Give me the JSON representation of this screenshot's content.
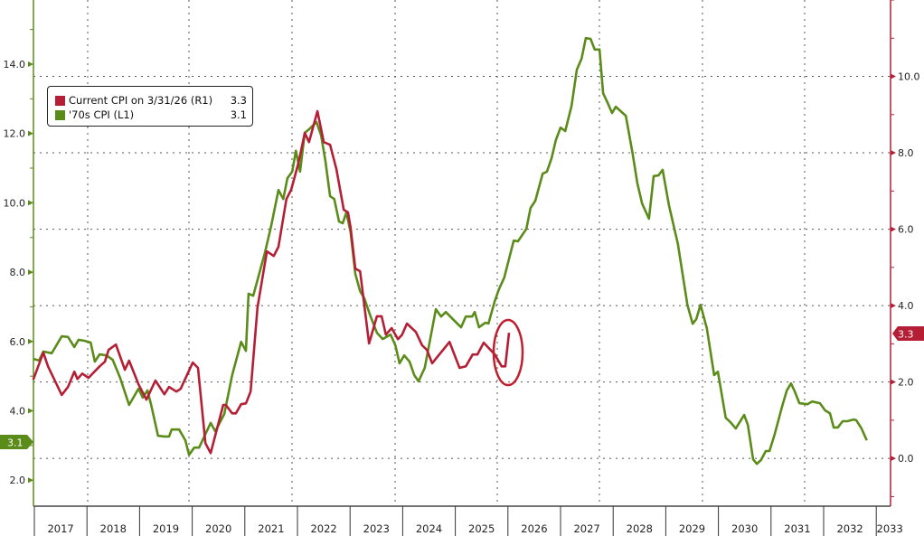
{
  "chart_data": {
    "type": "line",
    "title": "",
    "xlabel": "",
    "x_tick_labels": [
      "2017",
      "2018",
      "2019",
      "2020",
      "2021",
      "2022",
      "2023",
      "2024",
      "2025",
      "2026",
      "2027",
      "2028",
      "2029",
      "2030",
      "2031",
      "2032",
      "2033"
    ],
    "xlim": [
      2017,
      2033.27
    ],
    "y_left": {
      "ticks": [
        "2.0",
        "4.0",
        "6.0",
        "8.0",
        "10.0",
        "12.0",
        "14.0"
      ],
      "ylim": [
        1.25,
        15.85
      ]
    },
    "y_right": {
      "ticks": [
        "0.0",
        "2.0",
        "4.0",
        "6.0",
        "8.0",
        "10.0"
      ],
      "ylim": [
        -1.25,
        12.0
      ]
    },
    "grid": true,
    "legend_placement": "top-left",
    "colors": {
      "current": "#b51f36",
      "seventies": "#5b8c1a"
    },
    "series": [
      {
        "name": "Current CPI on 3/31/26 (R1)",
        "axis": "right",
        "last_value": "3.3",
        "points": [
          [
            2016.98,
            2.06
          ],
          [
            2017.17,
            2.77
          ],
          [
            2017.26,
            2.41
          ],
          [
            2017.52,
            1.66
          ],
          [
            2017.64,
            1.87
          ],
          [
            2017.76,
            2.27
          ],
          [
            2017.82,
            2.08
          ],
          [
            2017.91,
            2.22
          ],
          [
            2018.03,
            2.11
          ],
          [
            2018.24,
            2.41
          ],
          [
            2018.34,
            2.53
          ],
          [
            2018.41,
            2.84
          ],
          [
            2018.55,
            2.98
          ],
          [
            2018.72,
            2.32
          ],
          [
            2018.8,
            2.56
          ],
          [
            2018.98,
            1.94
          ],
          [
            2019.13,
            1.54
          ],
          [
            2019.3,
            2.04
          ],
          [
            2019.47,
            1.68
          ],
          [
            2019.56,
            1.87
          ],
          [
            2019.7,
            1.75
          ],
          [
            2019.78,
            1.82
          ],
          [
            2020.01,
            2.51
          ],
          [
            2020.11,
            2.37
          ],
          [
            2020.25,
            0.4
          ],
          [
            2020.35,
            0.14
          ],
          [
            2020.59,
            1.4
          ],
          [
            2020.64,
            1.4
          ],
          [
            2020.76,
            1.18
          ],
          [
            2020.83,
            1.18
          ],
          [
            2020.93,
            1.42
          ],
          [
            2021.02,
            1.44
          ],
          [
            2021.11,
            1.75
          ],
          [
            2021.24,
            3.95
          ],
          [
            2021.42,
            5.42
          ],
          [
            2021.55,
            5.3
          ],
          [
            2021.64,
            5.54
          ],
          [
            2021.79,
            6.79
          ],
          [
            2021.88,
            7.03
          ],
          [
            2022.02,
            7.74
          ],
          [
            2022.14,
            8.52
          ],
          [
            2022.22,
            8.28
          ],
          [
            2022.38,
            9.09
          ],
          [
            2022.5,
            8.28
          ],
          [
            2022.62,
            8.21
          ],
          [
            2022.74,
            7.57
          ],
          [
            2022.88,
            6.51
          ],
          [
            2022.96,
            6.44
          ],
          [
            2023.01,
            6.04
          ],
          [
            2023.1,
            4.97
          ],
          [
            2023.19,
            4.9
          ],
          [
            2023.36,
            3.01
          ],
          [
            2023.51,
            3.72
          ],
          [
            2023.6,
            3.72
          ],
          [
            2023.68,
            3.24
          ],
          [
            2023.79,
            3.41
          ],
          [
            2023.91,
            3.12
          ],
          [
            2023.99,
            3.24
          ],
          [
            2024.08,
            3.53
          ],
          [
            2024.25,
            3.31
          ],
          [
            2024.37,
            2.96
          ],
          [
            2024.46,
            2.84
          ],
          [
            2024.56,
            2.49
          ],
          [
            2024.89,
            3.05
          ],
          [
            2025.08,
            2.37
          ],
          [
            2025.2,
            2.41
          ],
          [
            2025.33,
            2.72
          ],
          [
            2025.42,
            2.72
          ],
          [
            2025.54,
            3.03
          ],
          [
            2025.75,
            2.72
          ],
          [
            2025.88,
            2.41
          ],
          [
            2025.95,
            2.41
          ],
          [
            2026.02,
            3.29
          ]
        ]
      },
      {
        "name": "'70s CPI (L1)",
        "axis": "left",
        "last_value": "3.1",
        "points": [
          [
            2016.98,
            5.5
          ],
          [
            2017.09,
            5.45
          ],
          [
            2017.17,
            5.71
          ],
          [
            2017.33,
            5.66
          ],
          [
            2017.52,
            6.15
          ],
          [
            2017.64,
            6.13
          ],
          [
            2017.76,
            5.84
          ],
          [
            2017.84,
            6.05
          ],
          [
            2017.95,
            6.02
          ],
          [
            2018.07,
            5.97
          ],
          [
            2018.15,
            5.42
          ],
          [
            2018.24,
            5.63
          ],
          [
            2018.37,
            5.6
          ],
          [
            2018.49,
            5.47
          ],
          [
            2018.63,
            4.95
          ],
          [
            2018.8,
            4.17
          ],
          [
            2018.98,
            4.64
          ],
          [
            2019.06,
            4.38
          ],
          [
            2019.15,
            4.59
          ],
          [
            2019.22,
            4.17
          ],
          [
            2019.35,
            3.28
          ],
          [
            2019.47,
            3.26
          ],
          [
            2019.56,
            3.26
          ],
          [
            2019.61,
            3.46
          ],
          [
            2019.75,
            3.46
          ],
          [
            2019.87,
            3.15
          ],
          [
            2019.94,
            2.73
          ],
          [
            2020.04,
            2.94
          ],
          [
            2020.13,
            2.94
          ],
          [
            2020.35,
            3.65
          ],
          [
            2020.44,
            3.41
          ],
          [
            2020.61,
            3.91
          ],
          [
            2020.76,
            5.03
          ],
          [
            2020.93,
            5.99
          ],
          [
            2021.02,
            5.73
          ],
          [
            2021.07,
            7.38
          ],
          [
            2021.16,
            7.32
          ],
          [
            2021.38,
            8.55
          ],
          [
            2021.5,
            9.33
          ],
          [
            2021.64,
            10.37
          ],
          [
            2021.73,
            10.11
          ],
          [
            2021.81,
            10.71
          ],
          [
            2021.9,
            10.9
          ],
          [
            2021.97,
            11.5
          ],
          [
            2022.05,
            10.9
          ],
          [
            2022.14,
            12.02
          ],
          [
            2022.22,
            12.12
          ],
          [
            2022.36,
            12.33
          ],
          [
            2022.45,
            11.94
          ],
          [
            2022.53,
            11.23
          ],
          [
            2022.62,
            10.19
          ],
          [
            2022.7,
            10.11
          ],
          [
            2022.79,
            9.46
          ],
          [
            2022.86,
            9.41
          ],
          [
            2022.93,
            9.72
          ],
          [
            2023.01,
            9.15
          ],
          [
            2023.1,
            7.95
          ],
          [
            2023.19,
            7.45
          ],
          [
            2023.27,
            7.25
          ],
          [
            2023.39,
            6.72
          ],
          [
            2023.51,
            6.25
          ],
          [
            2023.62,
            6.07
          ],
          [
            2023.77,
            6.2
          ],
          [
            2023.86,
            5.89
          ],
          [
            2023.94,
            5.37
          ],
          [
            2024.03,
            5.6
          ],
          [
            2024.13,
            5.42
          ],
          [
            2024.22,
            5.03
          ],
          [
            2024.3,
            4.85
          ],
          [
            2024.42,
            5.24
          ],
          [
            2024.63,
            6.93
          ],
          [
            2024.73,
            6.72
          ],
          [
            2024.82,
            6.85
          ],
          [
            2024.99,
            6.59
          ],
          [
            2025.11,
            6.41
          ],
          [
            2025.2,
            6.72
          ],
          [
            2025.32,
            6.72
          ],
          [
            2025.37,
            6.85
          ],
          [
            2025.45,
            6.41
          ],
          [
            2025.57,
            6.54
          ],
          [
            2025.63,
            6.52
          ],
          [
            2025.75,
            7.17
          ],
          [
            2025.83,
            7.51
          ],
          [
            2025.93,
            7.84
          ],
          [
            2026.11,
            8.91
          ],
          [
            2026.19,
            8.89
          ],
          [
            2026.35,
            9.25
          ],
          [
            2026.43,
            9.85
          ],
          [
            2026.52,
            10.06
          ],
          [
            2026.66,
            10.84
          ],
          [
            2026.74,
            10.9
          ],
          [
            2026.83,
            11.29
          ],
          [
            2026.91,
            11.81
          ],
          [
            2027.0,
            12.17
          ],
          [
            2027.09,
            12.07
          ],
          [
            2027.21,
            12.8
          ],
          [
            2027.31,
            13.84
          ],
          [
            2027.4,
            14.16
          ],
          [
            2027.48,
            14.75
          ],
          [
            2027.57,
            14.73
          ],
          [
            2027.65,
            14.42
          ],
          [
            2027.74,
            14.42
          ],
          [
            2027.81,
            13.16
          ],
          [
            2027.89,
            12.9
          ],
          [
            2027.98,
            12.59
          ],
          [
            2028.05,
            12.77
          ],
          [
            2028.24,
            12.51
          ],
          [
            2028.37,
            11.42
          ],
          [
            2028.46,
            10.56
          ],
          [
            2028.55,
            9.98
          ],
          [
            2028.68,
            9.54
          ],
          [
            2028.77,
            10.77
          ],
          [
            2028.86,
            10.79
          ],
          [
            2028.94,
            10.95
          ],
          [
            2029.06,
            9.93
          ],
          [
            2029.23,
            8.81
          ],
          [
            2029.41,
            7.06
          ],
          [
            2029.51,
            6.51
          ],
          [
            2029.58,
            6.65
          ],
          [
            2029.66,
            7.06
          ],
          [
            2029.78,
            6.38
          ],
          [
            2029.92,
            5.03
          ],
          [
            2029.99,
            5.13
          ],
          [
            2030.14,
            3.8
          ],
          [
            2030.23,
            3.67
          ],
          [
            2030.33,
            3.49
          ],
          [
            2030.49,
            3.88
          ],
          [
            2030.56,
            3.59
          ],
          [
            2030.66,
            2.6
          ],
          [
            2030.73,
            2.47
          ],
          [
            2030.81,
            2.58
          ],
          [
            2030.9,
            2.84
          ],
          [
            2030.97,
            2.84
          ],
          [
            2031.07,
            3.33
          ],
          [
            2031.21,
            4.12
          ],
          [
            2031.3,
            4.59
          ],
          [
            2031.38,
            4.79
          ],
          [
            2031.45,
            4.56
          ],
          [
            2031.54,
            4.22
          ],
          [
            2031.69,
            4.19
          ],
          [
            2031.78,
            4.27
          ],
          [
            2031.93,
            4.22
          ],
          [
            2032.03,
            4.01
          ],
          [
            2032.12,
            3.93
          ],
          [
            2032.19,
            3.52
          ],
          [
            2032.27,
            3.52
          ],
          [
            2032.36,
            3.7
          ],
          [
            2032.45,
            3.7
          ],
          [
            2032.57,
            3.75
          ],
          [
            2032.62,
            3.73
          ],
          [
            2032.72,
            3.49
          ],
          [
            2032.82,
            3.15
          ]
        ]
      }
    ]
  },
  "legend": {
    "items": [
      {
        "label": "Current CPI on 3/31/26 (R1)",
        "value": "3.3",
        "color": "#b51f36"
      },
      {
        "label": "'70s CPI (L1)",
        "value": "3.1",
        "color": "#5b8c1a"
      }
    ]
  },
  "badges": {
    "right": "3.3",
    "left": "3.1"
  }
}
